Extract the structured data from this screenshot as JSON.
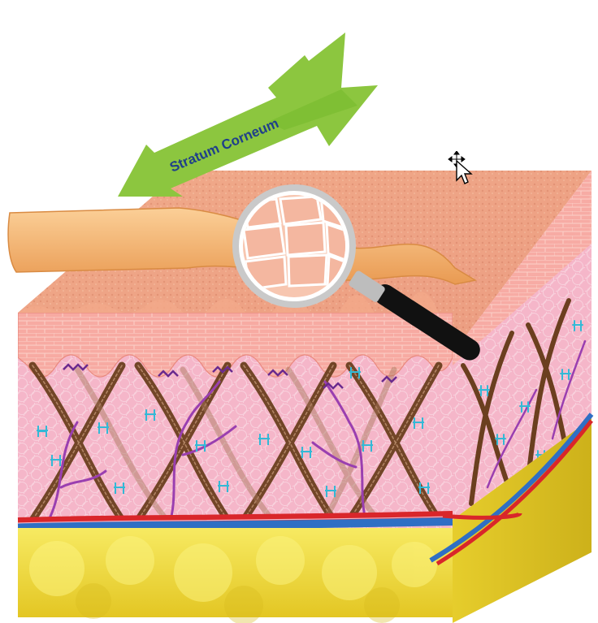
{
  "labels": {
    "arrow_label": "Stratum Corneum"
  },
  "colors": {
    "background": "#ffffff",
    "arrow_green": "#8cc63f",
    "arrow_text": "#1f3f8a",
    "stratum_sheet": "#f7b977",
    "epidermis": "#f6a9a3",
    "dermis": "#f4b3c8",
    "fat": "#f2e14a",
    "collagen": "#6b3f1f",
    "elastin": "#9a3fb0",
    "ladder_marks": "#33b9d6",
    "artery": "#d9262a",
    "vein": "#2f6fc4",
    "magnifier_handle": "#111111",
    "magnifier_rim": "#cfcfcf"
  },
  "icons": {
    "cursor": "move-cursor-icon",
    "magnifier": "magnifying-glass-icon",
    "arrow": "arrow-icon"
  }
}
